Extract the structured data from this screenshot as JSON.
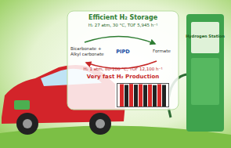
{
  "diagram": {
    "top_title": "Efficient H₂ Storage",
    "storage_conditions": "H₂ 27 atm, 30 °C, TOF 5,945 h⁻¹",
    "cycle": {
      "left_top": "Bicarbonate +",
      "left_bottom": "Alkyl carbonate",
      "catalyst": "PIPD",
      "right": "Formate"
    },
    "release_conditions": "H₂ 1 atm, 80-100 °C, TOF 12,100 h⁻¹",
    "bottom_title": "Very fast H₂ Production",
    "station_label": "Hydrogen Station"
  },
  "chart_data": {
    "type": "bar",
    "values": [
      95,
      92,
      96,
      93,
      95,
      92,
      94,
      91,
      95,
      92
    ],
    "colors": [
      "#d62728",
      "#222222",
      "#d62728",
      "#222222",
      "#d62728",
      "#222222",
      "#d62728",
      "#222222",
      "#d62728",
      "#222222"
    ],
    "ylim": [
      0,
      100
    ],
    "tick_labels": false
  }
}
